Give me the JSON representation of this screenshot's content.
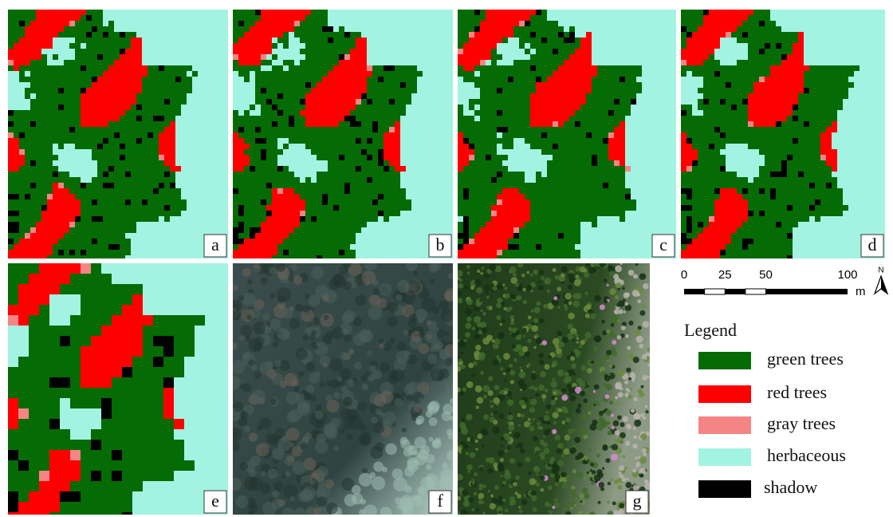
{
  "panels": [
    {
      "label": "a"
    },
    {
      "label": "b"
    },
    {
      "label": "c"
    },
    {
      "label": "d"
    },
    {
      "label": "e"
    },
    {
      "label": "f"
    },
    {
      "label": "g"
    }
  ],
  "scale_bar": {
    "ticks": [
      0,
      25,
      50,
      100
    ],
    "unit": "m"
  },
  "north_arrow": "N",
  "legend": {
    "title": "Legend",
    "items": [
      {
        "label": "green trees",
        "color": "#056b05"
      },
      {
        "label": "red trees",
        "color": "#ff0000"
      },
      {
        "label": "gray trees",
        "color": "#f58585"
      },
      {
        "label": "herbaceous",
        "color": "#a3f3e2"
      },
      {
        "label": "shadow",
        "color": "#000000"
      }
    ]
  }
}
